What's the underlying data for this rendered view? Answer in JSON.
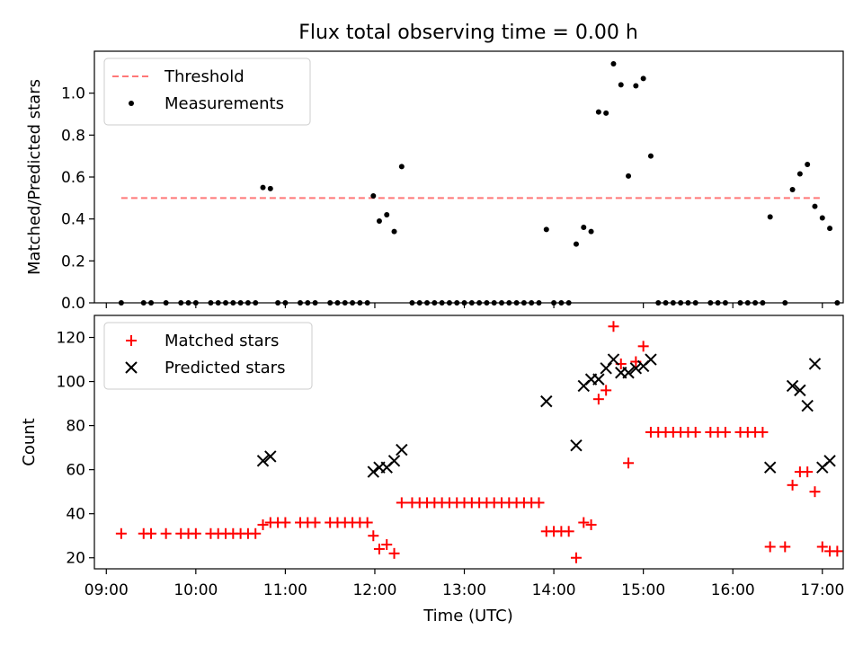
{
  "title": "Flux total observing time = 0.00 h",
  "chart_data": [
    {
      "type": "scatter",
      "ylabel": "Matched/Predicted stars",
      "xlim": [
        "08:52",
        "17:14"
      ],
      "ylim": [
        0,
        1.2
      ],
      "yticks": [
        0.0,
        0.2,
        0.4,
        0.6,
        0.8,
        1.0
      ],
      "legend": "top-left",
      "grid": false,
      "threshold": {
        "name": "Threshold",
        "value": 0.5,
        "x": [
          "09:10",
          "17:00"
        ],
        "color": "#ff7777",
        "style": "dashed"
      },
      "series": [
        {
          "name": "Measurements",
          "color": "#000000",
          "marker": "dot",
          "points": [
            [
              "09:10",
              0
            ],
            [
              "09:25",
              0
            ],
            [
              "09:30",
              0
            ],
            [
              "09:40",
              0
            ],
            [
              "09:50",
              0
            ],
            [
              "09:55",
              0
            ],
            [
              "10:00",
              0
            ],
            [
              "10:10",
              0
            ],
            [
              "10:15",
              0
            ],
            [
              "10:20",
              0
            ],
            [
              "10:25",
              0
            ],
            [
              "10:30",
              0
            ],
            [
              "10:35",
              0
            ],
            [
              "10:40",
              0
            ],
            [
              "10:45",
              0.55
            ],
            [
              "10:50",
              0.545
            ],
            [
              "10:55",
              0
            ],
            [
              "11:00",
              0
            ],
            [
              "11:10",
              0
            ],
            [
              "11:15",
              0
            ],
            [
              "11:20",
              0
            ],
            [
              "11:30",
              0
            ],
            [
              "11:35",
              0
            ],
            [
              "11:40",
              0
            ],
            [
              "11:45",
              0
            ],
            [
              "11:50",
              0
            ],
            [
              "11:55",
              0
            ],
            [
              "11:59",
              0.51
            ],
            [
              "12:03",
              0.39
            ],
            [
              "12:08",
              0.42
            ],
            [
              "12:13",
              0.34
            ],
            [
              "12:18",
              0.65
            ],
            [
              "12:25",
              0
            ],
            [
              "12:30",
              0
            ],
            [
              "12:35",
              0
            ],
            [
              "12:40",
              0
            ],
            [
              "12:45",
              0
            ],
            [
              "12:50",
              0
            ],
            [
              "12:55",
              0
            ],
            [
              "13:00",
              0
            ],
            [
              "13:05",
              0
            ],
            [
              "13:10",
              0
            ],
            [
              "13:15",
              0
            ],
            [
              "13:20",
              0
            ],
            [
              "13:25",
              0
            ],
            [
              "13:30",
              0
            ],
            [
              "13:35",
              0
            ],
            [
              "13:40",
              0
            ],
            [
              "13:45",
              0
            ],
            [
              "13:50",
              0
            ],
            [
              "13:55",
              0.35
            ],
            [
              "14:00",
              0
            ],
            [
              "14:05",
              0
            ],
            [
              "14:10",
              0
            ],
            [
              "14:15",
              0.28
            ],
            [
              "14:20",
              0.36
            ],
            [
              "14:25",
              0.34
            ],
            [
              "14:30",
              0.91
            ],
            [
              "14:35",
              0.905
            ],
            [
              "14:40",
              1.14
            ],
            [
              "14:45",
              1.04
            ],
            [
              "14:50",
              0.605
            ],
            [
              "14:55",
              1.035
            ],
            [
              "15:00",
              1.07
            ],
            [
              "15:05",
              0.7
            ],
            [
              "15:10",
              0
            ],
            [
              "15:15",
              0
            ],
            [
              "15:20",
              0
            ],
            [
              "15:25",
              0
            ],
            [
              "15:30",
              0
            ],
            [
              "15:35",
              0
            ],
            [
              "15:45",
              0
            ],
            [
              "15:50",
              0
            ],
            [
              "15:55",
              0
            ],
            [
              "16:05",
              0
            ],
            [
              "16:10",
              0
            ],
            [
              "16:15",
              0
            ],
            [
              "16:20",
              0
            ],
            [
              "16:25",
              0.41
            ],
            [
              "16:35",
              0
            ],
            [
              "16:40",
              0.54
            ],
            [
              "16:45",
              0.615
            ],
            [
              "16:50",
              0.66
            ],
            [
              "16:55",
              0.46
            ],
            [
              "17:00",
              0.405
            ],
            [
              "17:05",
              0.355
            ],
            [
              "17:10",
              0
            ]
          ]
        }
      ]
    },
    {
      "type": "scatter",
      "xlabel": "Time (UTC)",
      "ylabel": "Count",
      "xlim": [
        "08:52",
        "17:14"
      ],
      "ylim": [
        15,
        130
      ],
      "yticks": [
        20,
        40,
        60,
        80,
        100,
        120
      ],
      "xticks": [
        "09:00",
        "10:00",
        "11:00",
        "12:00",
        "13:00",
        "14:00",
        "15:00",
        "16:00",
        "17:00"
      ],
      "legend": "top-left",
      "grid": false,
      "series": [
        {
          "name": "Matched stars",
          "color": "#ff0000",
          "marker": "plus",
          "points": [
            [
              "09:10",
              31
            ],
            [
              "09:25",
              31
            ],
            [
              "09:30",
              31
            ],
            [
              "09:40",
              31
            ],
            [
              "09:50",
              31
            ],
            [
              "09:55",
              31
            ],
            [
              "10:00",
              31
            ],
            [
              "10:10",
              31
            ],
            [
              "10:15",
              31
            ],
            [
              "10:20",
              31
            ],
            [
              "10:25",
              31
            ],
            [
              "10:30",
              31
            ],
            [
              "10:35",
              31
            ],
            [
              "10:40",
              31
            ],
            [
              "10:45",
              35
            ],
            [
              "10:50",
              36
            ],
            [
              "10:55",
              36
            ],
            [
              "11:00",
              36
            ],
            [
              "11:10",
              36
            ],
            [
              "11:15",
              36
            ],
            [
              "11:20",
              36
            ],
            [
              "11:30",
              36
            ],
            [
              "11:35",
              36
            ],
            [
              "11:40",
              36
            ],
            [
              "11:45",
              36
            ],
            [
              "11:50",
              36
            ],
            [
              "11:55",
              36
            ],
            [
              "11:59",
              30
            ],
            [
              "12:03",
              24
            ],
            [
              "12:08",
              26
            ],
            [
              "12:13",
              22
            ],
            [
              "12:18",
              45
            ],
            [
              "12:25",
              45
            ],
            [
              "12:30",
              45
            ],
            [
              "12:35",
              45
            ],
            [
              "12:40",
              45
            ],
            [
              "12:45",
              45
            ],
            [
              "12:50",
              45
            ],
            [
              "12:55",
              45
            ],
            [
              "13:00",
              45
            ],
            [
              "13:05",
              45
            ],
            [
              "13:10",
              45
            ],
            [
              "13:15",
              45
            ],
            [
              "13:20",
              45
            ],
            [
              "13:25",
              45
            ],
            [
              "13:30",
              45
            ],
            [
              "13:35",
              45
            ],
            [
              "13:40",
              45
            ],
            [
              "13:45",
              45
            ],
            [
              "13:50",
              45
            ],
            [
              "13:55",
              32
            ],
            [
              "14:00",
              32
            ],
            [
              "14:05",
              32
            ],
            [
              "14:10",
              32
            ],
            [
              "14:15",
              20
            ],
            [
              "14:20",
              36
            ],
            [
              "14:25",
              35
            ],
            [
              "14:30",
              92
            ],
            [
              "14:35",
              96
            ],
            [
              "14:40",
              125
            ],
            [
              "14:45",
              108
            ],
            [
              "14:50",
              63
            ],
            [
              "14:55",
              109
            ],
            [
              "15:00",
              116
            ],
            [
              "15:05",
              77
            ],
            [
              "15:10",
              77
            ],
            [
              "15:15",
              77
            ],
            [
              "15:20",
              77
            ],
            [
              "15:25",
              77
            ],
            [
              "15:30",
              77
            ],
            [
              "15:35",
              77
            ],
            [
              "15:45",
              77
            ],
            [
              "15:50",
              77
            ],
            [
              "15:55",
              77
            ],
            [
              "16:05",
              77
            ],
            [
              "16:10",
              77
            ],
            [
              "16:15",
              77
            ],
            [
              "16:20",
              77
            ],
            [
              "16:25",
              25
            ],
            [
              "16:35",
              25
            ],
            [
              "16:40",
              53
            ],
            [
              "16:45",
              59
            ],
            [
              "16:50",
              59
            ],
            [
              "16:55",
              50
            ],
            [
              "17:00",
              25
            ],
            [
              "17:05",
              23
            ],
            [
              "17:10",
              23
            ]
          ]
        },
        {
          "name": "Predicted stars",
          "color": "#000000",
          "marker": "x",
          "points": [
            [
              "10:45",
              64
            ],
            [
              "10:50",
              66
            ],
            [
              "11:59",
              59
            ],
            [
              "12:03",
              61
            ],
            [
              "12:08",
              61
            ],
            [
              "12:13",
              64
            ],
            [
              "12:18",
              69
            ],
            [
              "13:55",
              91
            ],
            [
              "14:15",
              71
            ],
            [
              "14:20",
              98
            ],
            [
              "14:25",
              101
            ],
            [
              "14:30",
              101
            ],
            [
              "14:35",
              106
            ],
            [
              "14:40",
              110
            ],
            [
              "14:45",
              104
            ],
            [
              "14:50",
              104
            ],
            [
              "14:55",
              106
            ],
            [
              "15:00",
              107
            ],
            [
              "15:05",
              110
            ],
            [
              "16:25",
              61
            ],
            [
              "16:40",
              98
            ],
            [
              "16:45",
              96
            ],
            [
              "16:50",
              89
            ],
            [
              "16:55",
              108
            ],
            [
              "17:00",
              61
            ],
            [
              "17:05",
              64
            ]
          ]
        }
      ]
    }
  ]
}
